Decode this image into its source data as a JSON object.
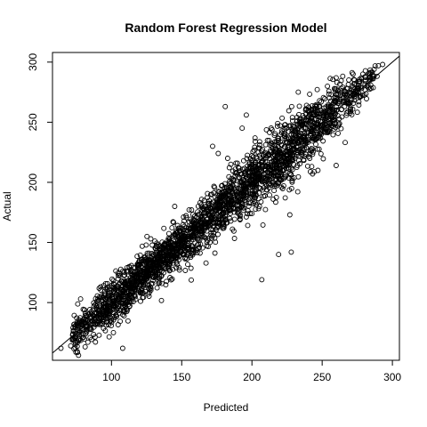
{
  "chart_data": {
    "type": "scatter",
    "title": "Random Forest Regression Model",
    "xlabel": "Predicted",
    "ylabel": "Actual",
    "xlim": [
      58,
      305
    ],
    "ylim": [
      52,
      308
    ],
    "x_ticks": [
      100,
      150,
      200,
      250,
      300
    ],
    "y_ticks": [
      100,
      150,
      200,
      250,
      300
    ],
    "x_tick_labels": [
      "100",
      "150",
      "200",
      "250",
      "300"
    ],
    "y_tick_labels": [
      "100",
      "150",
      "200",
      "250",
      "300"
    ],
    "grid": false,
    "legend": "none",
    "reference_line": {
      "intercept": 0,
      "slope": 1
    },
    "point_color": "#000000",
    "density_profile": [
      {
        "x": 80,
        "spread": 8,
        "weight": 0.4
      },
      {
        "x": 100,
        "spread": 9,
        "weight": 0.9
      },
      {
        "x": 120,
        "spread": 9,
        "weight": 1.0
      },
      {
        "x": 150,
        "spread": 9,
        "weight": 0.9
      },
      {
        "x": 180,
        "spread": 11,
        "weight": 0.9
      },
      {
        "x": 210,
        "spread": 14,
        "weight": 1.0
      },
      {
        "x": 230,
        "spread": 14,
        "weight": 1.0
      },
      {
        "x": 250,
        "spread": 12,
        "weight": 0.8
      },
      {
        "x": 270,
        "spread": 9,
        "weight": 0.4
      },
      {
        "x": 290,
        "spread": 6,
        "weight": 0.1
      }
    ],
    "notable_points": [
      {
        "x": 64,
        "y": 62
      },
      {
        "x": 71,
        "y": 64
      },
      {
        "x": 108,
        "y": 62
      },
      {
        "x": 181,
        "y": 263
      },
      {
        "x": 293,
        "y": 298
      },
      {
        "x": 290,
        "y": 297
      },
      {
        "x": 287,
        "y": 294
      },
      {
        "x": 279,
        "y": 290
      },
      {
        "x": 283,
        "y": 290
      },
      {
        "x": 78,
        "y": 103
      },
      {
        "x": 111,
        "y": 129
      },
      {
        "x": 207,
        "y": 119
      },
      {
        "x": 219,
        "y": 140
      },
      {
        "x": 228,
        "y": 142
      },
      {
        "x": 200,
        "y": 174
      },
      {
        "x": 227,
        "y": 173
      },
      {
        "x": 247,
        "y": 210
      },
      {
        "x": 260,
        "y": 214
      },
      {
        "x": 172,
        "y": 230
      },
      {
        "x": 193,
        "y": 245
      },
      {
        "x": 233,
        "y": 275
      },
      {
        "x": 240,
        "y": 260
      },
      {
        "x": 151,
        "y": 165
      },
      {
        "x": 128,
        "y": 153
      },
      {
        "x": 145,
        "y": 180
      },
      {
        "x": 176,
        "y": 224
      },
      {
        "x": 185,
        "y": 215
      },
      {
        "x": 260,
        "y": 287
      },
      {
        "x": 196,
        "y": 256
      },
      {
        "x": 272,
        "y": 290
      }
    ]
  }
}
